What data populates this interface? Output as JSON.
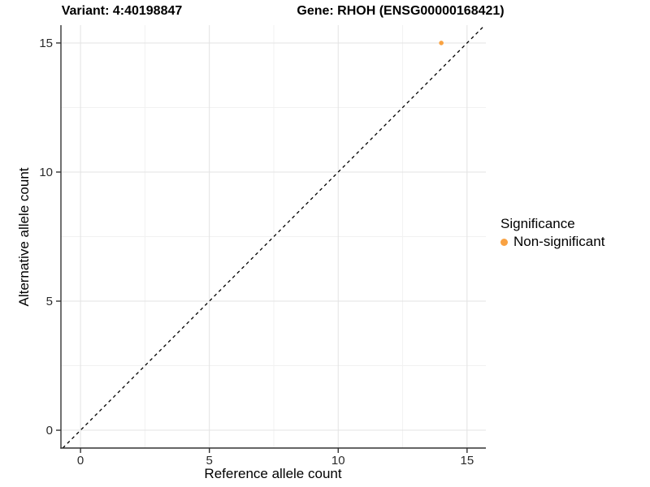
{
  "titles": {
    "variant": "Variant: 4:40198847",
    "gene": "Gene: RHOH (ENSG00000168421)"
  },
  "axes": {
    "x_label": "Reference allele count",
    "y_label": "Alternative allele count",
    "x_tick_labels": [
      "0",
      "5",
      "10",
      "15"
    ],
    "y_tick_labels": [
      "0",
      "5",
      "10",
      "15"
    ]
  },
  "legend": {
    "title": "Significance",
    "items": [
      {
        "label": "Non-significant",
        "color": "#F9A242"
      }
    ]
  },
  "colors": {
    "point_orange": "#F9A242",
    "axis_line": "#333333",
    "tick_text": "#2b2b2b",
    "grid_major": "#e3e3e3",
    "grid_minor": "#f1f1f1",
    "reference_line": "#000000",
    "background": "#ffffff"
  },
  "chart_data": {
    "type": "scatter",
    "title": "Variant: 4:40198847 / Gene: RHOH (ENSG00000168421)",
    "xlabel": "Reference allele count",
    "ylabel": "Alternative allele count",
    "x_ticks": [
      0,
      5,
      10,
      15
    ],
    "y_ticks": [
      0,
      5,
      10,
      15
    ],
    "minor_ticks": [
      2.5,
      7.5,
      12.5
    ],
    "xlim": [
      -0.76,
      15.73
    ],
    "ylim": [
      -0.69,
      15.69
    ],
    "grid": true,
    "legend_position": "right",
    "series": [
      {
        "name": "Non-significant",
        "color": "#F9A242",
        "points": [
          {
            "x": 14,
            "y": 15
          }
        ]
      }
    ],
    "reference_line": {
      "type": "identity",
      "equation": "y = x",
      "style": "dashed",
      "color": "#000000"
    }
  }
}
